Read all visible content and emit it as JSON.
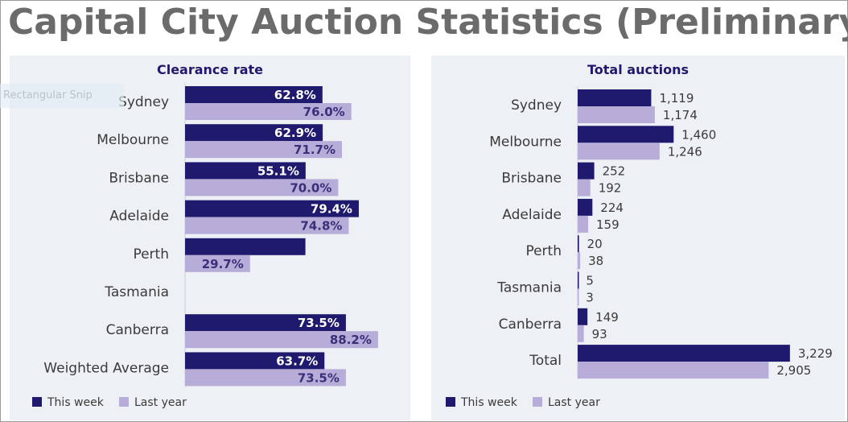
{
  "page": {
    "title": "Capital City Auction Statistics (Preliminary)",
    "overlay_text": "Rectangular Snip",
    "colors": {
      "this_week": "#1f1a6e",
      "last_year": "#b8acd8",
      "title": "#6b6b6b",
      "panel_bg": "#edf1f5"
    }
  },
  "chart_data": [
    {
      "type": "bar",
      "orientation": "horizontal",
      "title": "Clearance rate",
      "categories": [
        "Sydney",
        "Melbourne",
        "Brisbane",
        "Adelaide",
        "Perth",
        "Tasmania",
        "Canberra",
        "Weighted Average"
      ],
      "series": [
        {
          "name": "This week",
          "values": [
            62.8,
            62.9,
            55.1,
            79.4,
            55.0,
            null,
            73.5,
            63.7
          ],
          "labels": [
            "62.8%",
            "62.9%",
            "55.1%",
            "79.4%",
            "",
            "",
            "73.5%",
            "63.7%"
          ]
        },
        {
          "name": "Last year",
          "values": [
            76.0,
            71.7,
            70.0,
            74.8,
            29.7,
            null,
            88.2,
            73.5
          ],
          "labels": [
            "76.0%",
            "71.7%",
            "70.0%",
            "74.8%",
            "29.7%",
            "",
            "88.2%",
            "73.5%"
          ]
        }
      ],
      "xlim": [
        0,
        100
      ],
      "label_position": "inside-end",
      "legend": "bottom-left",
      "grid": false
    },
    {
      "type": "bar",
      "orientation": "horizontal",
      "title": "Total auctions",
      "categories": [
        "Sydney",
        "Melbourne",
        "Brisbane",
        "Adelaide",
        "Perth",
        "Tasmania",
        "Canberra",
        "Total"
      ],
      "series": [
        {
          "name": "This week",
          "values": [
            1119,
            1460,
            252,
            224,
            20,
            5,
            149,
            3229
          ],
          "labels": [
            "1,119",
            "1,460",
            "252",
            "224",
            "20",
            "5",
            "149",
            "3,229"
          ]
        },
        {
          "name": "Last year",
          "values": [
            1174,
            1246,
            192,
            159,
            38,
            3,
            93,
            2905
          ],
          "labels": [
            "1,174",
            "1,246",
            "192",
            "159",
            "38",
            "3",
            "93",
            "2,905"
          ]
        }
      ],
      "xlim": [
        0,
        3500
      ],
      "label_position": "outside-end",
      "legend": "bottom-left",
      "grid": false
    }
  ]
}
